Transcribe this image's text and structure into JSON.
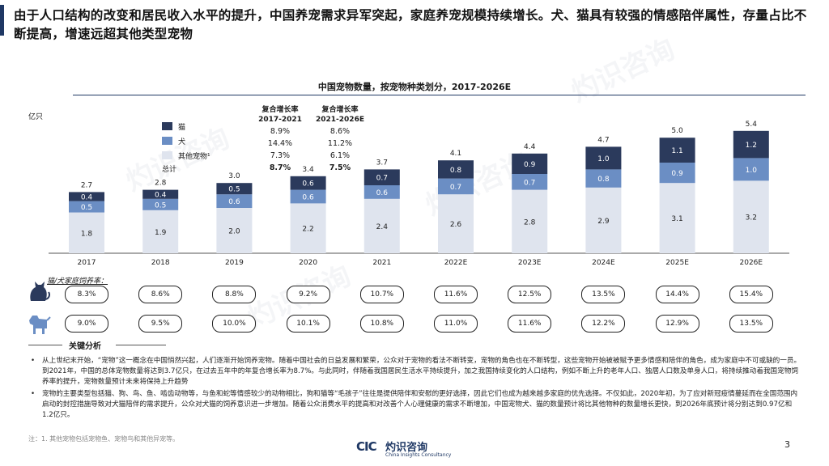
{
  "headline": "由于人口结构的改变和居民收入水平的提升，中国养宠需求异军突起，家庭养宠规模持续增长。犬、猫具有较强的情感陪伴属性，存量占比不断提高，增速远超其他类型宠物",
  "chart_title": "中国宠物数量，按宠物种类划分，2017-2026E",
  "unit_label": "亿只",
  "legend": [
    {
      "label": "猫",
      "color": "#2b3a5c"
    },
    {
      "label": "犬",
      "color": "#6b8ec4"
    },
    {
      "label": "其他宠物¹",
      "color": "#dfe4ee"
    },
    {
      "label": "总计",
      "color": ""
    }
  ],
  "cagr": {
    "headers": [
      {
        "line1": "复合增长率",
        "line2": "2017-2021"
      },
      {
        "line1": "复合增长率",
        "line2": "2021-2026E"
      }
    ],
    "rows": [
      [
        "8.9%",
        "8.6%"
      ],
      [
        "14.4%",
        "11.2%"
      ],
      [
        "7.3%",
        "6.1%"
      ],
      [
        "8.7%",
        "7.5%"
      ]
    ]
  },
  "chart_data": {
    "type": "bar",
    "stacked": true,
    "title": "中国宠物数量，按宠物种类划分，2017-2026E",
    "ylabel": "亿只",
    "categories": [
      "2017",
      "2018",
      "2019",
      "2020",
      "2021",
      "2022E",
      "2023E",
      "2024E",
      "2025E",
      "2026E"
    ],
    "series": [
      {
        "name": "其他宠物¹",
        "color": "#dfe4ee",
        "values": [
          1.8,
          1.9,
          2.0,
          2.2,
          2.4,
          2.6,
          2.8,
          2.9,
          3.1,
          3.2
        ]
      },
      {
        "name": "犬",
        "color": "#6b8ec4",
        "values": [
          0.5,
          0.5,
          0.6,
          0.6,
          0.6,
          0.7,
          0.7,
          0.8,
          0.9,
          1.0
        ]
      },
      {
        "name": "猫",
        "color": "#2b3a5c",
        "values": [
          0.4,
          0.4,
          0.5,
          0.6,
          0.7,
          0.8,
          0.9,
          1.0,
          1.1,
          1.2
        ]
      }
    ],
    "totals": [
      "2.7",
      "2.8",
      "3.0",
      "3.4",
      "3.7",
      "4.1",
      "4.4",
      "4.7",
      "5.0",
      "5.4"
    ],
    "ylim": [
      0,
      5.4
    ],
    "grid": false
  },
  "household_row_title": "猫/犬家庭饲养率：",
  "cat_rates": [
    "8.3%",
    "8.6%",
    "8.8%",
    "9.2%",
    "10.7%",
    "11.6%",
    "12.5%",
    "13.5%",
    "14.4%",
    "15.4%"
  ],
  "dog_rates": [
    "9.0%",
    "9.5%",
    "10.0%",
    "10.1%",
    "10.8%",
    "11.0%",
    "11.6%",
    "12.2%",
    "12.9%",
    "13.5%"
  ],
  "analysis_title": "关键分析",
  "bullets": [
    "从上世纪末开始，“宠物”这一概念在中国悄然兴起，人们逐渐开始饲养宠物。随着中国社会的日益发展和繁荣，公众对于宠物的看法不断转变，宠物的角色也在不断转型，这些宠物开始被被赋予更多情感和陪伴的角色，成为家庭中不可或缺的一员。到2021年，中国的总体宠物数量将达到3.7亿只，在过去五年中的年复合增长率为8.7%。与此同时，伴随着我国居民生活水平持续提升，加之我国持续变化的人口结构，例如不断上升的老年人口、独居人口数及单身人口，将持续推动着我国宠物饲养率的提升，宠物数量预计未来将保持上升趋势",
    "宠物的主要类型包括猫、狗、鸟、鱼、啮齿动物等，与鱼和蛇等情感较少的动物相比，狗和猫等“毛孩子”往往是提供陪伴和安慰的更好选择，因此它们也成为越来越多家庭的优先选择。不仅如此，2020年初，为了应对新冠疫情蔓延而在全国范围内启动的封控措施导致对犬猫陪伴的需求提升，公众对犬猫的饲养意识进一步增加。随着公众消费水平的提高和对改善个人心理健康的需求不断增加，中国宠物犬、猫的数量预计将比其他物种的数量增长更快，到2026年底预计将分别达到0.97亿和1.2亿只。"
  ],
  "footnote": "注：1. 其他宠物包括宠物鱼、宠物鸟和其他异宠等。",
  "logo": {
    "mark": "CIC",
    "cn": "灼识咨询",
    "en": "China Insights Consultancy"
  },
  "watermark": "灼识咨询",
  "page_number": "3"
}
